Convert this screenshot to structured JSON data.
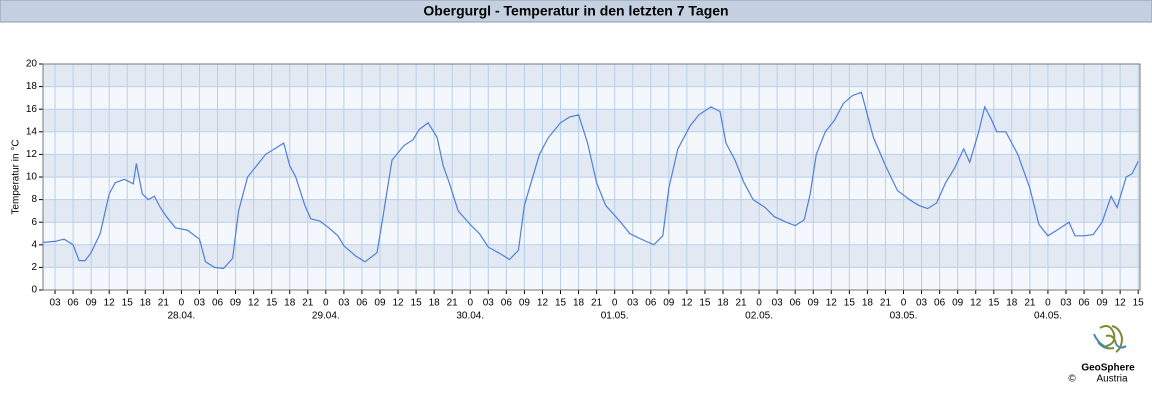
{
  "chart_data": {
    "type": "line",
    "title": "Obergurgl - Temperatur in den letzten 7 Tagen",
    "y_label": "Temperatur in °C",
    "color": "#4f7fdc",
    "grid": true,
    "x": [
      1,
      3,
      4.5,
      6,
      7,
      8,
      9,
      10.5,
      12,
      13,
      14.5,
      16,
      16.5,
      17.5,
      18.5,
      19.5,
      20.5,
      21.5,
      23,
      25,
      27,
      28,
      29.5,
      31,
      32.5,
      33.5,
      35,
      36.5,
      38,
      39.5,
      41,
      42,
      43,
      44.5,
      45.5,
      47,
      48.5,
      50,
      51,
      53,
      54.5,
      56.5,
      57.5,
      59,
      61,
      62.5,
      63.5,
      65,
      66.5,
      67.5,
      68.5,
      70,
      72,
      73.5,
      75,
      77,
      78.5,
      80,
      81,
      83.5,
      85,
      87,
      88.5,
      90,
      91.5,
      93,
      94.5,
      97,
      98.5,
      100,
      102.5,
      104,
      105,
      106.5,
      108.5,
      110,
      112,
      113.5,
      114.5,
      116,
      117.5,
      119,
      121,
      122.5,
      124.5,
      126,
      127.5,
      128.5,
      129.5,
      131,
      132.5,
      134,
      135.5,
      137,
      138,
      139,
      141,
      143,
      145,
      146.5,
      148,
      149.5,
      151,
      152.5,
      154,
      155,
      156.5,
      157.5,
      158.5,
      159.5,
      161,
      163,
      165,
      166.5,
      168,
      169.5,
      171.5,
      172.5,
      174,
      175.5,
      177,
      178.5,
      179.5,
      181,
      182,
      183
    ],
    "values": [
      4.2,
      4.3,
      4.5,
      4,
      2.6,
      2.6,
      3.3,
      5,
      8.5,
      9.5,
      9.8,
      9.4,
      11.2,
      8.5,
      8,
      8.3,
      7.3,
      6.5,
      5.5,
      5.3,
      4.5,
      2.5,
      2,
      1.9,
      2.8,
      7,
      10,
      11,
      12,
      12.5,
      13,
      11,
      10,
      7.5,
      6.3,
      6.1,
      5.5,
      4.8,
      3.9,
      3,
      2.5,
      3.3,
      6.5,
      11.5,
      12.8,
      13.3,
      14.2,
      14.8,
      13.5,
      11,
      9.5,
      7,
      5.8,
      5,
      3.8,
      3.2,
      2.7,
      3.5,
      7.5,
      12,
      13.5,
      14.8,
      15.3,
      15.5,
      13,
      9.5,
      7.5,
      6,
      5,
      4.6,
      4,
      4.8,
      9,
      12.5,
      14.5,
      15.5,
      16.2,
      15.8,
      13,
      11.5,
      9.5,
      8,
      7.3,
      6.5,
      6,
      5.7,
      6.2,
      8.5,
      12,
      14,
      15,
      16.5,
      17.2,
      17.5,
      15.5,
      13.5,
      11,
      8.8,
      8,
      7.5,
      7.2,
      7.7,
      9.5,
      10.8,
      12.5,
      11.3,
      14,
      16.2,
      15.2,
      14,
      14,
      12,
      9,
      5.8,
      4.8,
      5.3,
      6,
      4.8,
      4.8,
      4.9,
      6,
      8.3,
      7.3,
      10,
      10.3,
      11.4
    ],
    "xlim": [
      1,
      183.3
    ],
    "ylim": [
      0,
      20
    ],
    "yticks": [
      0,
      2,
      4,
      6,
      8,
      10,
      12,
      14,
      16,
      18,
      20
    ],
    "xticks": [
      {
        "value": 3,
        "label": "03"
      },
      {
        "value": 6,
        "label": "06"
      },
      {
        "value": 9,
        "label": "09"
      },
      {
        "value": 12,
        "label": "12"
      },
      {
        "value": 15,
        "label": "15"
      },
      {
        "value": 18,
        "label": "18"
      },
      {
        "value": 21,
        "label": "21"
      },
      {
        "value": 24,
        "label": "0"
      },
      {
        "value": 27,
        "label": "03"
      },
      {
        "value": 30,
        "label": "06"
      },
      {
        "value": 33,
        "label": "09"
      },
      {
        "value": 36,
        "label": "12"
      },
      {
        "value": 39,
        "label": "15"
      },
      {
        "value": 42,
        "label": "18"
      },
      {
        "value": 45,
        "label": "21"
      },
      {
        "value": 48,
        "label": "0"
      },
      {
        "value": 51,
        "label": "03"
      },
      {
        "value": 54,
        "label": "06"
      },
      {
        "value": 57,
        "label": "09"
      },
      {
        "value": 60,
        "label": "12"
      },
      {
        "value": 63,
        "label": "15"
      },
      {
        "value": 66,
        "label": "18"
      },
      {
        "value": 69,
        "label": "21"
      },
      {
        "value": 72,
        "label": "0"
      },
      {
        "value": 75,
        "label": "03"
      },
      {
        "value": 78,
        "label": "06"
      },
      {
        "value": 81,
        "label": "09"
      },
      {
        "value": 84,
        "label": "12"
      },
      {
        "value": 87,
        "label": "15"
      },
      {
        "value": 90,
        "label": "18"
      },
      {
        "value": 93,
        "label": "21"
      },
      {
        "value": 96,
        "label": "0"
      },
      {
        "value": 99,
        "label": "03"
      },
      {
        "value": 102,
        "label": "06"
      },
      {
        "value": 105,
        "label": "09"
      },
      {
        "value": 108,
        "label": "12"
      },
      {
        "value": 111,
        "label": "15"
      },
      {
        "value": 114,
        "label": "18"
      },
      {
        "value": 117,
        "label": "21"
      },
      {
        "value": 120,
        "label": "0"
      },
      {
        "value": 123,
        "label": "03"
      },
      {
        "value": 126,
        "label": "06"
      },
      {
        "value": 129,
        "label": "09"
      },
      {
        "value": 132,
        "label": "12"
      },
      {
        "value": 135,
        "label": "15"
      },
      {
        "value": 138,
        "label": "18"
      },
      {
        "value": 141,
        "label": "21"
      },
      {
        "value": 144,
        "label": "0"
      },
      {
        "value": 147,
        "label": "03"
      },
      {
        "value": 150,
        "label": "06"
      },
      {
        "value": 153,
        "label": "09"
      },
      {
        "value": 156,
        "label": "12"
      },
      {
        "value": 159,
        "label": "15"
      },
      {
        "value": 162,
        "label": "18"
      },
      {
        "value": 165,
        "label": "21"
      },
      {
        "value": 168,
        "label": "0"
      },
      {
        "value": 171,
        "label": "03"
      },
      {
        "value": 174,
        "label": "06"
      },
      {
        "value": 177,
        "label": "09"
      },
      {
        "value": 180,
        "label": "12"
      },
      {
        "value": 183,
        "label": "15"
      }
    ],
    "date_labels": [
      {
        "value": 24,
        "label": "28.04."
      },
      {
        "value": 48,
        "label": "29.04."
      },
      {
        "value": 72,
        "label": "30.04."
      },
      {
        "value": 96,
        "label": "01.05."
      },
      {
        "value": 120,
        "label": "02.05."
      },
      {
        "value": 144,
        "label": "03.05."
      },
      {
        "value": 168,
        "label": "04.05."
      }
    ]
  },
  "logo": {
    "name": "GeoSphere",
    "sub": "Austria",
    "copyright": "©"
  }
}
